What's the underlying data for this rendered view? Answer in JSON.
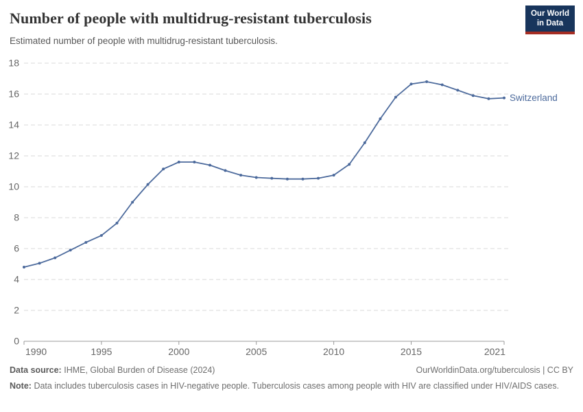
{
  "header": {
    "title": "Number of people with multidrug-resistant tuberculosis",
    "subtitle": "Estimated number of people with multidrug-resistant tuberculosis."
  },
  "logo": {
    "line1": "Our World",
    "line2": "in Data",
    "bg_color": "#18355c",
    "accent_color": "#a52d23"
  },
  "chart_data": {
    "type": "line",
    "title": "Number of people with multidrug-resistant tuberculosis",
    "xlabel": "",
    "ylabel": "",
    "x": [
      1990,
      1991,
      1992,
      1993,
      1994,
      1995,
      1996,
      1997,
      1998,
      1999,
      2000,
      2001,
      2002,
      2003,
      2004,
      2005,
      2006,
      2007,
      2008,
      2009,
      2010,
      2011,
      2012,
      2013,
      2014,
      2015,
      2016,
      2017,
      2018,
      2019,
      2020,
      2021
    ],
    "series": [
      {
        "name": "Switzerland",
        "color": "#4c6a9c",
        "values": [
          4.8,
          5.05,
          5.4,
          5.9,
          6.4,
          6.85,
          7.65,
          9.0,
          10.15,
          11.15,
          11.6,
          11.6,
          11.4,
          11.05,
          10.75,
          10.6,
          10.55,
          10.5,
          10.5,
          10.55,
          10.75,
          11.45,
          12.85,
          14.4,
          15.8,
          16.65,
          16.8,
          16.6,
          16.25,
          15.9,
          15.7,
          15.75
        ]
      }
    ],
    "ylim": [
      0,
      18
    ],
    "xlim": [
      1990,
      2021
    ],
    "yticks": [
      0,
      2,
      4,
      6,
      8,
      10,
      12,
      14,
      16,
      18
    ],
    "xticks": [
      1990,
      1995,
      2000,
      2005,
      2010,
      2015,
      2021
    ],
    "grid": "horizontal-dashed",
    "legend": "line-end-label",
    "colors": {
      "grid": "#dadada",
      "axis": "#999999",
      "tick_label": "#666666"
    }
  },
  "footer": {
    "data_source_label": "Data source:",
    "data_source": "IHME, Global Burden of Disease (2024)",
    "attribution": "OurWorldinData.org/tuberculosis | CC BY",
    "note_label": "Note:",
    "note": "Data includes tuberculosis cases in HIV-negative people. Tuberculosis cases among people with HIV are classified under HIV/AIDS cases."
  }
}
